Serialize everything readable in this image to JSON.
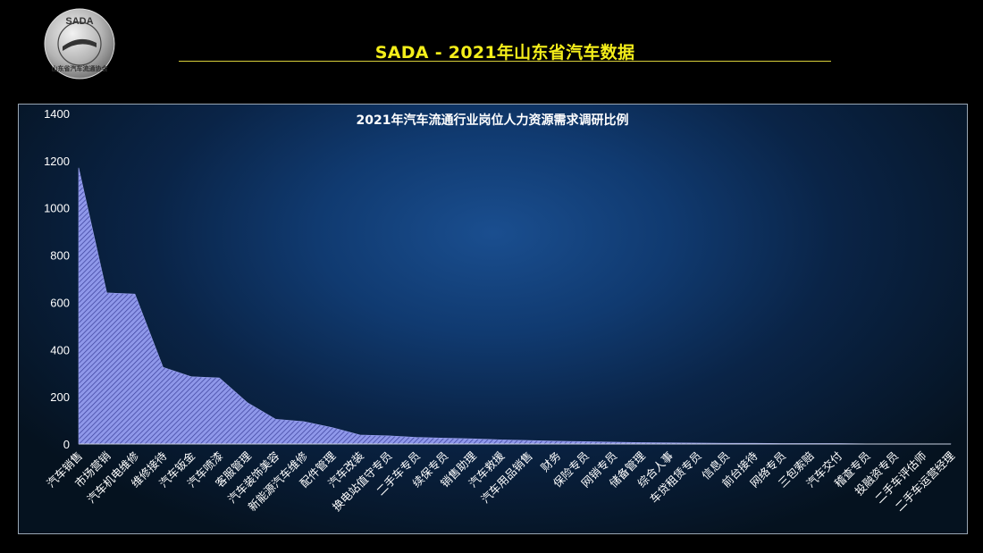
{
  "header": {
    "title": "SADA -  2021年山东省汽车数据",
    "logo_text": "SADA",
    "logo_subtext": "山东省汽车流通协会"
  },
  "colors": {
    "title": "#f4ee1a",
    "area_fill": "#8f98ea",
    "area_hatch": "#3a3f9a",
    "axis_text": "#ffffff"
  },
  "chart_data": {
    "type": "area",
    "title": "2021年汽车流通行业岗位人力资源需求调研比例",
    "xlabel": "",
    "ylabel": "",
    "ylim": [
      0,
      1400
    ],
    "yticks": [
      0,
      200,
      400,
      600,
      800,
      1000,
      1200,
      1400
    ],
    "grid": false,
    "legend": "none",
    "categories": [
      "汽车销售",
      "市场营销",
      "汽车机电维修",
      "维修接待",
      "汽车钣金",
      "汽车喷漆",
      "客服管理",
      "汽车装饰美容",
      "新能源汽车维修",
      "配件管理",
      "汽车改装",
      "换电站值守专员",
      "二手车专员",
      "续保专员",
      "销售助理",
      "汽车救援",
      "汽车用品销售",
      "财务",
      "保险专员",
      "网销专员",
      "储备管理",
      "综合人事",
      "车贷租赁专员",
      "信息员",
      "前台接待",
      "网络专员",
      "三包索赔",
      "汽车交付",
      "稽查专员",
      "投融资专员",
      "二手车评估师",
      "二手车运营经理"
    ],
    "values": [
      1170,
      640,
      635,
      325,
      285,
      280,
      175,
      105,
      95,
      70,
      38,
      35,
      28,
      25,
      22,
      18,
      15,
      12,
      10,
      8,
      6,
      5,
      4,
      3,
      3,
      2,
      2,
      2,
      1,
      1,
      1,
      1
    ]
  }
}
